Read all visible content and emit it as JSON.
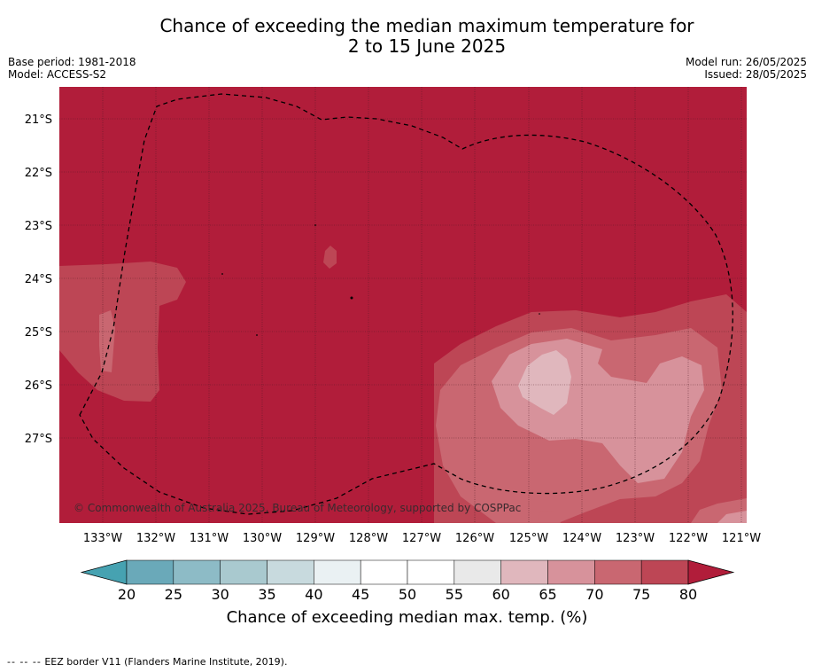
{
  "title_line1": "Chance of exceeding the median maximum temperature for",
  "title_line2": "2 to 15 June 2025",
  "base_period": "Base period: 1981-2018",
  "model": "Model: ACCESS-S2",
  "model_run": "Model run: 26/05/2025",
  "issued": "Issued: 28/05/2025",
  "copyright": "© Commonwealth of Australia 2025, Bureau of Meteorology, supported by COSPPac",
  "lon_labels": [
    "133°W",
    "132°W",
    "131°W",
    "130°W",
    "129°W",
    "128°W",
    "127°W",
    "126°W",
    "125°W",
    "124°W",
    "123°W",
    "122°W",
    "121°W"
  ],
  "lat_labels": [
    "21°S",
    "22°S",
    "23°S",
    "24°S",
    "25°S",
    "26°S",
    "27°S"
  ],
  "colorbar": {
    "title": "Chance of exceeding median max. temp. (%)",
    "ticks": [
      "20",
      "25",
      "30",
      "35",
      "40",
      "45",
      "50",
      "55",
      "60",
      "65",
      "70",
      "75",
      "80"
    ],
    "colors": [
      "#6aa9b9",
      "#8dbbc6",
      "#a9c9cf",
      "#c8dade",
      "#eaf1f3",
      "#ffffff",
      "#ffffff",
      "#e9e9e9",
      "#e0b7bd",
      "#d7929b",
      "#c96771",
      "#bd4655"
    ],
    "under_color": "#46a2b1",
    "over_color": "#b11d3a"
  },
  "footnote_dash": "-- -- --",
  "footnote": "EEZ border V11 (Flanders Marine Institute, 2019).",
  "colors": {
    "dominant": "#b11d3a"
  }
}
